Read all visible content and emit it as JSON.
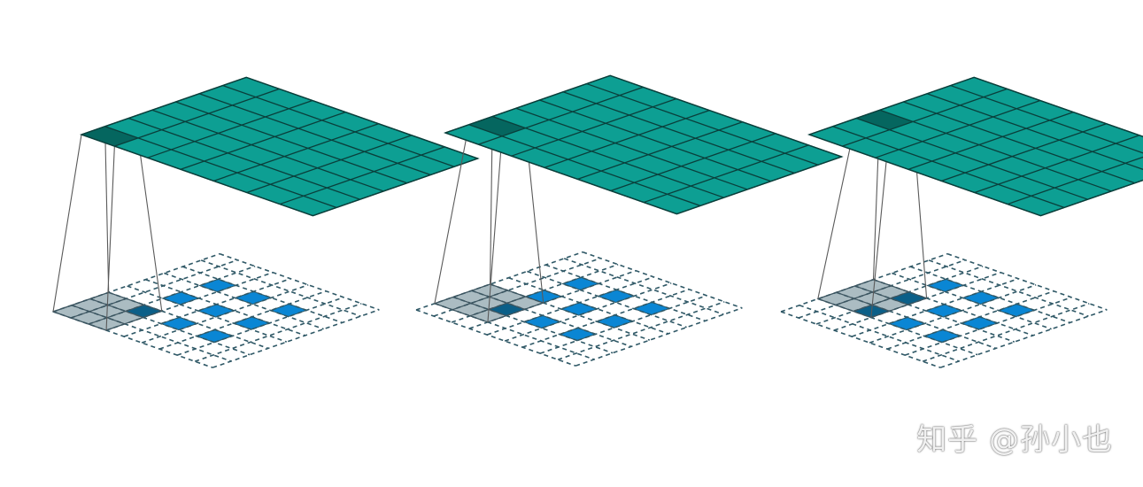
{
  "figure": {
    "panel_count": 3,
    "output_grid_cells": 7,
    "input_grid_cells": 9,
    "kernel_cells": 3,
    "colors": {
      "output_fill": "#0d9f93",
      "output_highlight": "#05665f",
      "output_stroke": "#0a3f3b",
      "input_dashed": "#2f5866",
      "input_blue": "#0a86d4",
      "kernel_gray": "#a7b8bf",
      "kernel_dark": "#136a90",
      "kernel_overlap": "#0b5f88",
      "projection_line": "#5a5a5a"
    }
  },
  "watermark": {
    "text": "知乎 @孙小也"
  }
}
